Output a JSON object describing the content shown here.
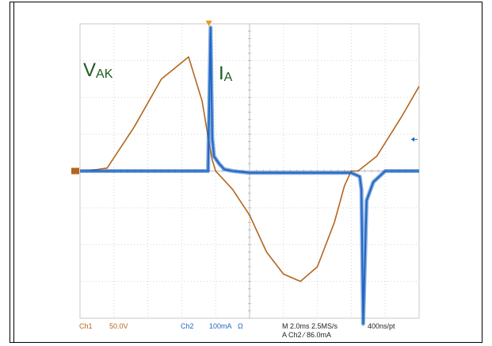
{
  "chart_data": {
    "type": "line",
    "title": "",
    "xlabel": "",
    "ylabel": "",
    "grid": true,
    "divisions": {
      "x": 10,
      "y": 8
    },
    "x_unit": "ms",
    "x_per_div": 2.0,
    "xlim": [
      -10.0,
      10.0
    ],
    "series": [
      {
        "name": "VAK",
        "label_main": "V",
        "label_sub": "AK",
        "channel": "Ch1",
        "color": "#b5651d",
        "units_per_div": 50.0,
        "unit": "V",
        "x": [
          -10.0,
          -9.6,
          -8.4,
          -6.8,
          -5.2,
          -3.6,
          -2.8,
          -2.4,
          -2.2,
          -2.0,
          -1.0,
          0.0,
          1.0,
          2.0,
          3.0,
          4.0,
          5.0,
          5.6,
          6.0,
          6.4,
          7.5,
          9.0,
          10.0
        ],
        "y": [
          0.0,
          0.0,
          4.0,
          60.0,
          125.0,
          155.0,
          95.0,
          40.0,
          15.0,
          0.0,
          -25.0,
          -60.0,
          -110.0,
          -140.0,
          -150.0,
          -130.0,
          -70.0,
          -20.0,
          0.0,
          0.0,
          20.0,
          75.0,
          115.0
        ]
      },
      {
        "name": "IA",
        "label_main": "I",
        "label_sub": "A",
        "channel": "Ch2",
        "color": "#1f66c4",
        "units_per_div": 100.0,
        "unit": "mA",
        "x": [
          -10.0,
          -2.45,
          -2.3,
          -2.2,
          -2.1,
          -1.8,
          -1.5,
          -1.0,
          0.0,
          5.0,
          6.0,
          6.5,
          6.6,
          6.7,
          6.9,
          7.3,
          8.0,
          10.0
        ],
        "y": [
          0.0,
          0.0,
          390.0,
          90.0,
          40.0,
          20.0,
          5.0,
          0.0,
          -5.0,
          -5.0,
          -5.0,
          -15.0,
          -50.0,
          -415.0,
          -80.0,
          -30.0,
          0.0,
          0.0
        ]
      }
    ],
    "trigger": {
      "channel": "Ch2",
      "level": "86.0mA"
    }
  },
  "status": {
    "ch1": "Ch1",
    "ch1_scale": "50.0V",
    "ch2": "Ch2",
    "ch2_scale": "100mA",
    "ch2_coupling": "Ω",
    "timebase": "M 2.0ms 2.5MS/s",
    "record": "400ns/pt",
    "trigger_line": "A  Ch2  ⁄  86.0mA"
  }
}
